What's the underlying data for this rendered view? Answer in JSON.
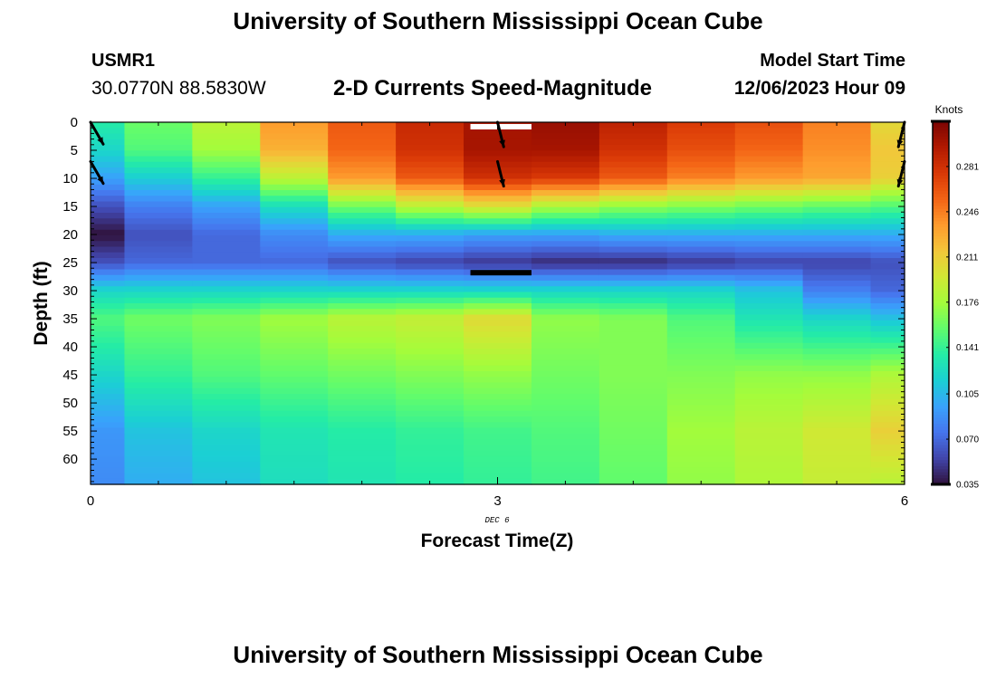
{
  "header": {
    "title": "University of Southern Mississippi Ocean Cube",
    "station": "USMR1",
    "coordinates": "30.0770N  88.5830W",
    "subtitle": "2-D Currents Speed-Magnitude",
    "model_start_label": "Model Start Time",
    "model_start_value": "12/06/2023 Hour 09"
  },
  "footer": {
    "title": "University of Southern Mississippi Ocean Cube"
  },
  "colors": {
    "colormap": [
      "#30123b",
      "#4145ab",
      "#4675ed",
      "#39a2fc",
      "#1bcfd4",
      "#24eca6",
      "#61fc6c",
      "#a4fc3b",
      "#d1e834",
      "#f3c63a",
      "#fe9b2d",
      "#f36315",
      "#d93806",
      "#b11901",
      "#7a0403"
    ],
    "frame": "#000000"
  },
  "chart_data": {
    "type": "heatmap",
    "title": "2-D Currents Speed-Magnitude",
    "xlabel": "Forecast Time(Z)",
    "ylabel": "Depth (ft)",
    "x_date_label": "DEC 6",
    "xlim": [
      0,
      6
    ],
    "ylim": [
      0,
      64.5
    ],
    "x_ticks": [
      0,
      3,
      6
    ],
    "x_tick_labels": [
      "0",
      "3",
      "6"
    ],
    "y_ticks": [
      0,
      5,
      10,
      15,
      20,
      25,
      30,
      35,
      40,
      45,
      50,
      55,
      60
    ],
    "y_tick_labels": [
      "0",
      "5",
      "10",
      "15",
      "20",
      "25",
      "30",
      "35",
      "40",
      "45",
      "50",
      "55",
      "60"
    ],
    "colorbar": {
      "label": "Knots",
      "min": 0.035,
      "max": 0.316,
      "tick_values": [
        0.035,
        0.07,
        0.105,
        0.141,
        0.176,
        0.211,
        0.246,
        0.281
      ],
      "tick_labels": [
        "0.035",
        "0.070",
        "0.105",
        "0.141",
        "0.176",
        "0.211",
        "0.246",
        "0.281"
      ]
    },
    "time_hours": [
      0,
      0.5,
      1,
      1.5,
      2,
      2.5,
      3,
      3.5,
      4,
      4.5,
      5,
      5.5,
      6
    ],
    "speed_profiles": [
      {
        "hour": 0,
        "depths": [
          0,
          5,
          10,
          15,
          20,
          25,
          30,
          35,
          45,
          55,
          64.5
        ],
        "values": [
          0.135,
          0.12,
          0.095,
          0.06,
          0.035,
          0.06,
          0.12,
          0.15,
          0.12,
          0.09,
          0.085
        ]
      },
      {
        "hour": 0.5,
        "depths": [
          0,
          5,
          10,
          15,
          20,
          25,
          30,
          35,
          45,
          55,
          64.5
        ],
        "values": [
          0.158,
          0.15,
          0.115,
          0.08,
          0.06,
          0.07,
          0.12,
          0.16,
          0.14,
          0.11,
          0.1
        ]
      },
      {
        "hour": 1,
        "depths": [
          0,
          5,
          10,
          15,
          20,
          25,
          30,
          35,
          45,
          55,
          64.5
        ],
        "values": [
          0.185,
          0.175,
          0.14,
          0.095,
          0.07,
          0.07,
          0.12,
          0.165,
          0.15,
          0.12,
          0.11
        ]
      },
      {
        "hour": 1.5,
        "depths": [
          0,
          5,
          10,
          15,
          20,
          25,
          30,
          35,
          45,
          55,
          64.5
        ],
        "values": [
          0.235,
          0.225,
          0.185,
          0.125,
          0.085,
          0.07,
          0.12,
          0.175,
          0.155,
          0.13,
          0.125
        ]
      },
      {
        "hour": 2,
        "depths": [
          0,
          5,
          10,
          15,
          20,
          25,
          30,
          35,
          45,
          55,
          64.5
        ],
        "values": [
          0.26,
          0.255,
          0.235,
          0.16,
          0.1,
          0.06,
          0.12,
          0.185,
          0.16,
          0.135,
          0.13
        ]
      },
      {
        "hour": 2.5,
        "depths": [
          0,
          5,
          10,
          15,
          20,
          25,
          30,
          35,
          45,
          55,
          64.5
        ],
        "values": [
          0.285,
          0.28,
          0.26,
          0.185,
          0.1,
          0.055,
          0.12,
          0.19,
          0.165,
          0.14,
          0.135
        ]
      },
      {
        "hour": 3,
        "depths": [
          0,
          5,
          10,
          15,
          20,
          25,
          30,
          35,
          45,
          55,
          64.5
        ],
        "values": [
          0.3,
          0.3,
          0.28,
          0.2,
          0.095,
          0.05,
          0.12,
          0.205,
          0.17,
          0.145,
          0.14
        ]
      },
      {
        "hour": 3.5,
        "depths": [
          0,
          5,
          10,
          15,
          20,
          25,
          30,
          35,
          45,
          55,
          64.5
        ],
        "values": [
          0.305,
          0.3,
          0.275,
          0.18,
          0.095,
          0.045,
          0.12,
          0.17,
          0.16,
          0.15,
          0.145
        ]
      },
      {
        "hour": 4,
        "depths": [
          0,
          5,
          10,
          15,
          20,
          25,
          30,
          35,
          45,
          55,
          64.5
        ],
        "values": [
          0.29,
          0.28,
          0.26,
          0.17,
          0.1,
          0.045,
          0.12,
          0.165,
          0.165,
          0.16,
          0.155
        ]
      },
      {
        "hour": 4.5,
        "depths": [
          0,
          5,
          10,
          15,
          20,
          25,
          30,
          35,
          45,
          55,
          64.5
        ],
        "values": [
          0.275,
          0.265,
          0.245,
          0.165,
          0.1,
          0.05,
          0.12,
          0.15,
          0.165,
          0.175,
          0.17
        ]
      },
      {
        "hour": 5,
        "depths": [
          0,
          5,
          10,
          15,
          20,
          25,
          30,
          35,
          45,
          55,
          64.5
        ],
        "values": [
          0.265,
          0.255,
          0.235,
          0.16,
          0.1,
          0.055,
          0.11,
          0.13,
          0.17,
          0.185,
          0.18
        ]
      },
      {
        "hour": 5.5,
        "depths": [
          0,
          5,
          10,
          15,
          20,
          25,
          30,
          35,
          45,
          55,
          64.5
        ],
        "values": [
          0.245,
          0.24,
          0.23,
          0.155,
          0.1,
          0.055,
          0.08,
          0.12,
          0.17,
          0.195,
          0.19
        ]
      },
      {
        "hour": 6,
        "depths": [
          0,
          5,
          10,
          15,
          20,
          25,
          30,
          35,
          45,
          55,
          64.5
        ],
        "values": [
          0.205,
          0.215,
          0.21,
          0.15,
          0.1,
          0.06,
          0.07,
          0.11,
          0.18,
          0.21,
          0.185
        ]
      }
    ],
    "current_vectors": [
      {
        "hour": 0,
        "depth_ft": 0,
        "direction": "SE"
      },
      {
        "hour": 0,
        "depth_ft": 7,
        "direction": "SE"
      },
      {
        "hour": 3,
        "depth_ft": 0,
        "direction": "SSE"
      },
      {
        "hour": 3,
        "depth_ft": 7,
        "direction": "SSE"
      },
      {
        "hour": 6,
        "depth_ft": 0,
        "direction": "SSW"
      },
      {
        "hour": 6,
        "depth_ft": 7,
        "direction": "SSW"
      }
    ],
    "highlight_bars": [
      {
        "hour_start": 2.8,
        "hour_end": 3.25,
        "depth_ft": 0.8,
        "color": "#ffffff"
      },
      {
        "hour_start": 2.8,
        "hour_end": 3.25,
        "depth_ft": 26.8,
        "color": "#000000"
      }
    ]
  }
}
